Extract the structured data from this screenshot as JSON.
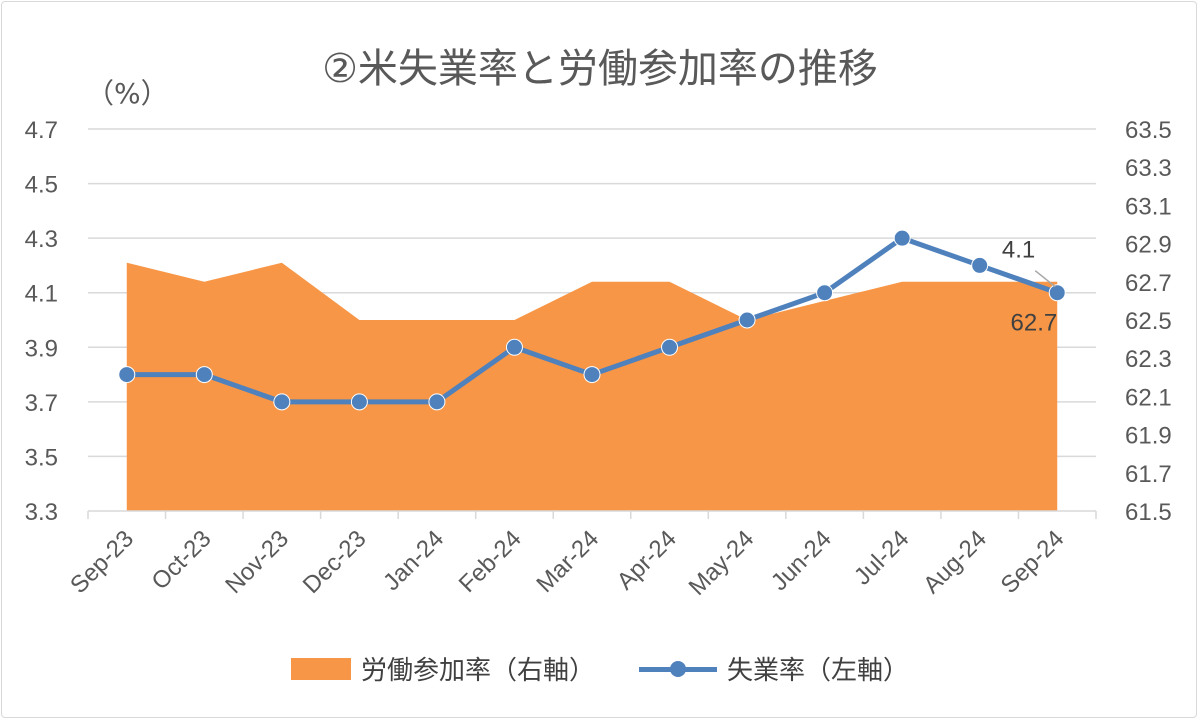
{
  "chart_data": {
    "type": "line",
    "title": "②米失業率と労働参加率の推移",
    "unit_label": "（%）",
    "categories": [
      "Sep-23",
      "Oct-23",
      "Nov-23",
      "Dec-23",
      "Jan-24",
      "Feb-24",
      "Mar-24",
      "Apr-24",
      "May-24",
      "Jun-24",
      "Jul-24",
      "Aug-24",
      "Sep-24"
    ],
    "series": [
      {
        "name": "労働参加率（右軸）",
        "type": "area",
        "axis": "right",
        "color": "#f79646",
        "values": [
          62.8,
          62.7,
          62.8,
          62.5,
          62.5,
          62.5,
          62.7,
          62.7,
          62.5,
          62.6,
          62.7,
          62.7,
          62.7
        ]
      },
      {
        "name": "失業率（左軸）",
        "type": "line",
        "axis": "left",
        "color": "#4f81bd",
        "values": [
          3.8,
          3.8,
          3.7,
          3.7,
          3.7,
          3.9,
          3.8,
          3.9,
          4.0,
          4.1,
          4.3,
          4.2,
          4.1
        ]
      }
    ],
    "left_axis": {
      "min": 3.3,
      "max": 4.7,
      "ticks": [
        "3.3",
        "3.5",
        "3.7",
        "3.9",
        "4.1",
        "4.3",
        "4.5",
        "4.7"
      ]
    },
    "right_axis": {
      "min": 61.5,
      "max": 63.5,
      "ticks": [
        "61.5",
        "61.7",
        "61.9",
        "62.1",
        "62.3",
        "62.5",
        "62.7",
        "62.9",
        "63.1",
        "63.3",
        "63.5"
      ]
    },
    "data_labels": [
      {
        "series": "失業率（左軸）",
        "category": "Sep-24",
        "text": "4.1"
      },
      {
        "series": "労働参加率（右軸）",
        "category": "Sep-24",
        "text": "62.7"
      }
    ],
    "grid": true,
    "legend_position": "bottom"
  }
}
